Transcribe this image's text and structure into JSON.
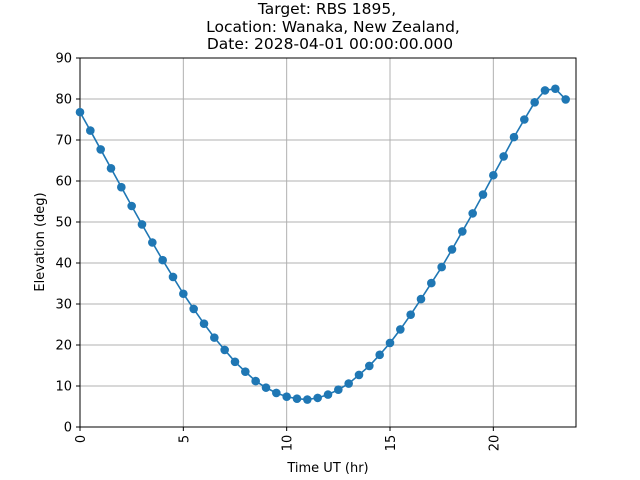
{
  "chart_data": {
    "type": "line",
    "title_lines": [
      "Target: RBS 1895,",
      "Location: Wanaka, New Zealand,",
      "Date: 2028-04-01 00:00:00.000"
    ],
    "xlabel": "Time UT (hr)",
    "ylabel": "Elevation (deg)",
    "xlim": [
      0,
      24
    ],
    "ylim": [
      0,
      90
    ],
    "xticks": [
      "0",
      "5",
      "10",
      "15",
      "20"
    ],
    "yticks": [
      "0",
      "10",
      "20",
      "30",
      "40",
      "50",
      "60",
      "70",
      "80",
      "90"
    ],
    "grid": true,
    "series_color": "#1f77b4",
    "series": [
      {
        "x": [
          0,
          0.5,
          1,
          1.5,
          2,
          2.5,
          3,
          3.5,
          4,
          4.5,
          5,
          5.5,
          6,
          6.5,
          7,
          7.5,
          8,
          8.5,
          9,
          9.5,
          10,
          10.5,
          11,
          11.5,
          12,
          12.5,
          13,
          13.5,
          14,
          14.5,
          15,
          15.5,
          16,
          16.5,
          17,
          17.5,
          18,
          18.5,
          19,
          19.5,
          20,
          20.5,
          21,
          21.5,
          22,
          22.5,
          23,
          23.5
        ],
        "y": [
          76.8,
          72.3,
          67.7,
          63.1,
          58.5,
          53.9,
          49.4,
          45.0,
          40.7,
          36.6,
          32.5,
          28.8,
          25.2,
          21.8,
          18.8,
          15.9,
          13.5,
          11.2,
          9.6,
          8.3,
          7.4,
          6.9,
          6.7,
          7.1,
          7.9,
          9.1,
          10.6,
          12.7,
          14.9,
          17.6,
          20.5,
          23.8,
          27.4,
          31.2,
          35.1,
          39.0,
          43.3,
          47.7,
          52.1,
          56.7,
          61.4,
          66.0,
          70.7,
          75.0,
          79.2,
          82.1,
          82.5,
          79.9
        ]
      }
    ]
  }
}
